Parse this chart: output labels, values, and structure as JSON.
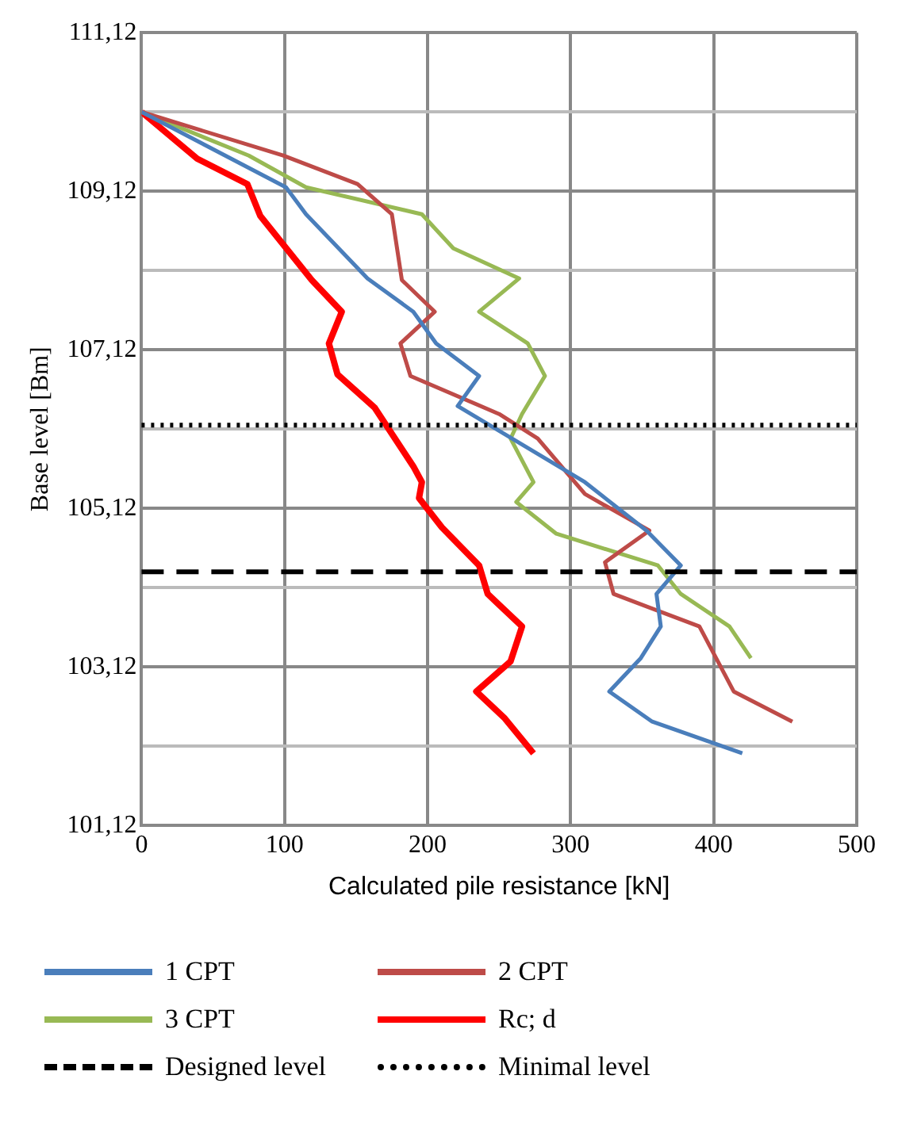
{
  "chart_data": {
    "type": "line",
    "xlabel": "Calculated pile resistance [kN]",
    "ylabel": "Base level [Bm]",
    "xlim": [
      0,
      500
    ],
    "xticks": [
      0,
      100,
      200,
      300,
      400,
      500
    ],
    "ylim": [
      101.12,
      111.12
    ],
    "yticks": [
      {
        "value": 101.12,
        "label": "101,12"
      },
      {
        "value": 102.12,
        "label": null
      },
      {
        "value": 103.12,
        "label": "103,12"
      },
      {
        "value": 104.12,
        "label": null
      },
      {
        "value": 105.12,
        "label": "105,12"
      },
      {
        "value": 106.12,
        "label": null
      },
      {
        "value": 107.12,
        "label": "107,12"
      },
      {
        "value": 108.12,
        "label": null
      },
      {
        "value": 109.12,
        "label": "109,12"
      },
      {
        "value": 110.12,
        "label": null
      },
      {
        "value": 111.12,
        "label": "111,12"
      }
    ],
    "grid": true,
    "legend": "bottom",
    "marker": "none",
    "series": [
      {
        "name": "1 CPT",
        "color": "#4a7ebb",
        "x": [
          0,
          101,
          115,
          158,
          190,
          206,
          236,
          221,
          310,
          353,
          377,
          360,
          363,
          349,
          327,
          357,
          420
        ],
        "values": [
          110.12,
          109.17,
          108.83,
          108.02,
          107.6,
          107.2,
          106.79,
          106.41,
          105.45,
          104.84,
          104.4,
          104.04,
          103.63,
          103.23,
          102.81,
          102.43,
          102.03
        ]
      },
      {
        "name": "2 CPT",
        "color": "#be4b48",
        "x": [
          0,
          99,
          151,
          175,
          182,
          205,
          181,
          188,
          250,
          277,
          310,
          355,
          324,
          330,
          390,
          414,
          455
        ],
        "values": [
          110.12,
          109.57,
          109.21,
          108.83,
          108.0,
          107.6,
          107.2,
          106.79,
          106.31,
          106.0,
          105.3,
          104.84,
          104.44,
          104.04,
          103.63,
          102.81,
          102.43
        ]
      },
      {
        "name": "3 CPT",
        "color": "#98b954",
        "x": [
          0,
          75,
          115,
          196,
          218,
          264,
          236,
          270,
          282,
          266,
          258,
          274,
          262,
          290,
          361,
          377,
          411,
          426
        ],
        "values": [
          110.12,
          109.57,
          109.17,
          108.83,
          108.4,
          108.02,
          107.6,
          107.2,
          106.79,
          106.31,
          106.0,
          105.45,
          105.2,
          104.8,
          104.4,
          104.04,
          103.63,
          103.23
        ]
      },
      {
        "name": "Rc; d",
        "color": "#ff0000",
        "x": [
          0,
          39,
          74,
          83,
          119,
          140,
          131,
          137,
          163,
          190,
          196,
          194,
          210,
          236,
          242,
          266,
          258,
          234,
          254,
          274
        ],
        "values": [
          110.12,
          109.53,
          109.21,
          108.81,
          108.0,
          107.6,
          107.2,
          106.81,
          106.39,
          105.65,
          105.45,
          105.25,
          104.88,
          104.4,
          104.04,
          103.63,
          103.19,
          102.81,
          102.47,
          102.03
        ]
      }
    ],
    "ref_lines": [
      {
        "axis": "y",
        "value": 104.32,
        "label": "Designed level",
        "color": "#000000",
        "line_style": "dashed"
      },
      {
        "axis": "y",
        "value": 106.17,
        "label": "Minimal level",
        "color": "#000000",
        "line_style": "dotted"
      }
    ]
  }
}
